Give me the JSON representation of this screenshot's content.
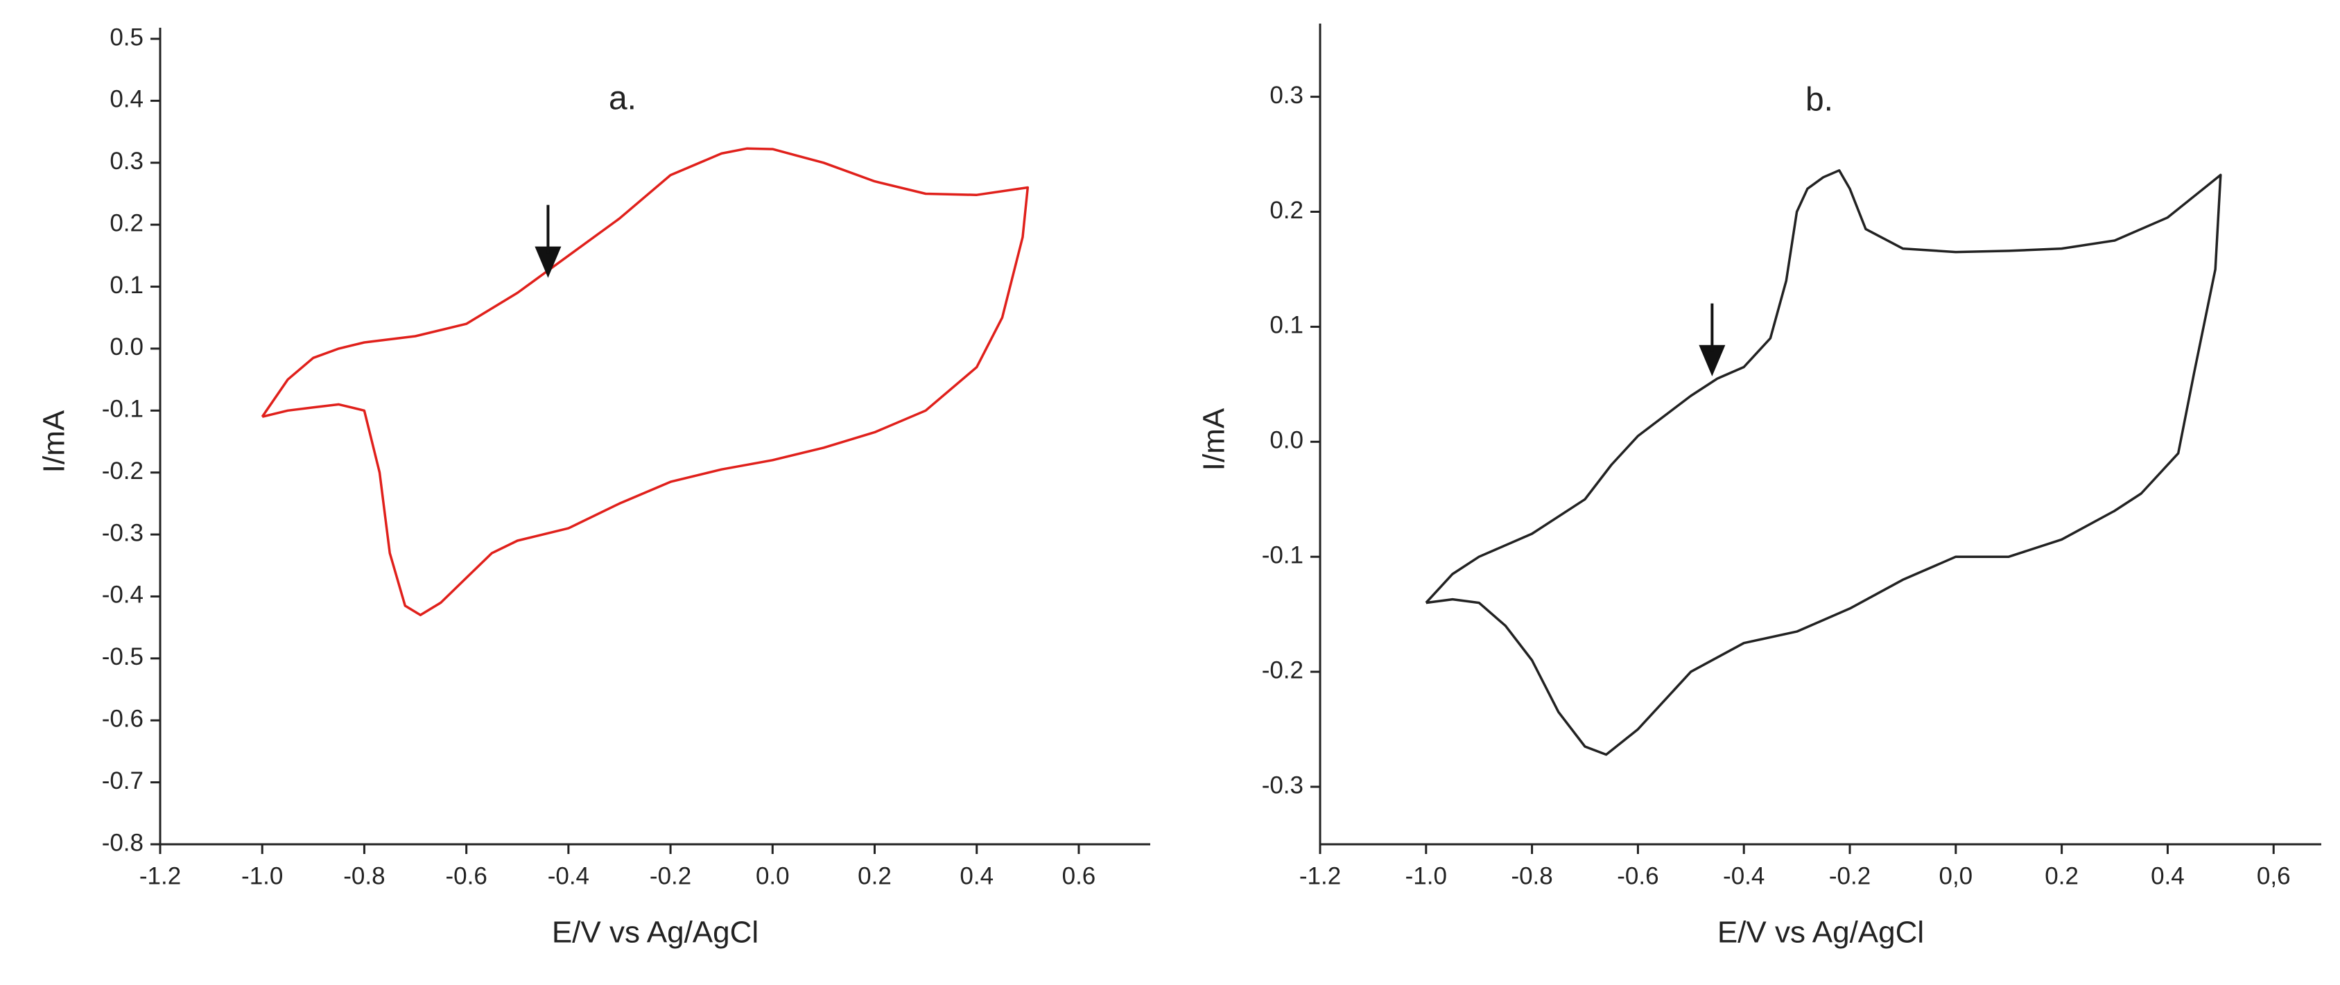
{
  "chart_data": [
    {
      "type": "line",
      "title": "a.",
      "xlabel": "E/V vs Ag/AgCl",
      "ylabel": "I/mA",
      "xlim": [
        -1.2,
        0.74
      ],
      "ylim": [
        -0.8,
        0.5
      ],
      "xticks": [
        -1.2,
        {
          "value": -1,
          "label": "-1.0"
        },
        -0.8,
        -0.6,
        -0.4,
        -0.2,
        {
          "value": 0,
          "label": "0.0"
        },
        0.2,
        0.4,
        0.6
      ],
      "yticks": [
        0.5,
        0.4,
        0.3,
        0.2,
        0.1,
        {
          "value": 0,
          "label": "0.0"
        },
        -0.1,
        -0.2,
        -0.3,
        -0.4,
        -0.5,
        -0.6,
        -0.7,
        -0.8
      ],
      "x": [
        -1.0,
        -0.95,
        -0.9,
        -0.85,
        -0.8,
        -0.7,
        -0.6,
        -0.5,
        -0.4,
        -0.3,
        -0.2,
        -0.1,
        -0.05,
        0.0,
        0.1,
        0.2,
        0.3,
        0.4,
        0.5,
        0.49,
        0.45,
        0.4,
        0.3,
        0.2,
        0.1,
        0.0,
        -0.1,
        -0.2,
        -0.3,
        -0.4,
        -0.5,
        -0.55,
        -0.6,
        -0.65,
        -0.69,
        -0.72,
        -0.75,
        -0.77,
        -0.8,
        -0.85,
        -0.9,
        -0.95,
        -1.0
      ],
      "series": [
        {
          "color": "#e0201b",
          "values": [
            -0.11,
            -0.05,
            -0.015,
            0.0,
            0.01,
            0.02,
            0.04,
            0.09,
            0.15,
            0.21,
            0.28,
            0.315,
            0.323,
            0.322,
            0.3,
            0.27,
            0.25,
            0.248,
            0.26,
            0.18,
            0.05,
            -0.03,
            -0.1,
            -0.135,
            -0.16,
            -0.18,
            -0.195,
            -0.215,
            -0.25,
            -0.29,
            -0.31,
            -0.33,
            -0.37,
            -0.41,
            -0.43,
            -0.415,
            -0.33,
            -0.2,
            -0.1,
            -0.09,
            -0.095,
            -0.1,
            -0.11
          ]
        }
      ],
      "arrow": {
        "x": -0.44,
        "y": 0.12
      }
    },
    {
      "type": "line",
      "title": "b.",
      "xlabel": "E/V vs Ag/AgCl",
      "ylabel": "I/mA",
      "xlim": [
        -1.2,
        0.69
      ],
      "ylim": [
        -0.35,
        0.354
      ],
      "xticks": [
        -1.2,
        {
          "value": -1,
          "label": "-1.0"
        },
        -0.8,
        -0.6,
        -0.4,
        -0.2,
        {
          "value": 0,
          "label": "0,0"
        },
        0.2,
        0.4,
        {
          "value": 0.6,
          "label": "0,6"
        }
      ],
      "yticks": [
        0.3,
        0.2,
        0.1,
        {
          "value": 0,
          "label": "0.0"
        },
        -0.1,
        -0.2,
        -0.3
      ],
      "x": [
        -1.0,
        -0.95,
        -0.9,
        -0.8,
        -0.7,
        -0.65,
        -0.6,
        -0.5,
        -0.45,
        -0.4,
        -0.35,
        -0.32,
        -0.3,
        -0.28,
        -0.25,
        -0.22,
        -0.2,
        -0.17,
        -0.1,
        0.0,
        0.1,
        0.2,
        0.3,
        0.4,
        0.5,
        0.49,
        0.45,
        0.42,
        0.35,
        0.3,
        0.2,
        0.1,
        0.0,
        -0.1,
        -0.2,
        -0.3,
        -0.4,
        -0.5,
        -0.6,
        -0.66,
        -0.7,
        -0.75,
        -0.8,
        -0.85,
        -0.9,
        -0.95,
        -1.0
      ],
      "series": [
        {
          "color": "#222222",
          "values": [
            -0.14,
            -0.115,
            -0.1,
            -0.08,
            -0.05,
            -0.02,
            0.005,
            0.04,
            0.055,
            0.065,
            0.09,
            0.14,
            0.2,
            0.22,
            0.23,
            0.236,
            0.22,
            0.185,
            0.168,
            0.165,
            0.166,
            0.168,
            0.175,
            0.195,
            0.232,
            0.15,
            0.06,
            -0.01,
            -0.045,
            -0.06,
            -0.085,
            -0.1,
            -0.1,
            -0.12,
            -0.145,
            -0.165,
            -0.175,
            -0.2,
            -0.25,
            -0.272,
            -0.265,
            -0.235,
            -0.19,
            -0.16,
            -0.14,
            -0.137,
            -0.14
          ]
        }
      ],
      "arrow": {
        "x": -0.46,
        "y": 0.06
      }
    }
  ]
}
